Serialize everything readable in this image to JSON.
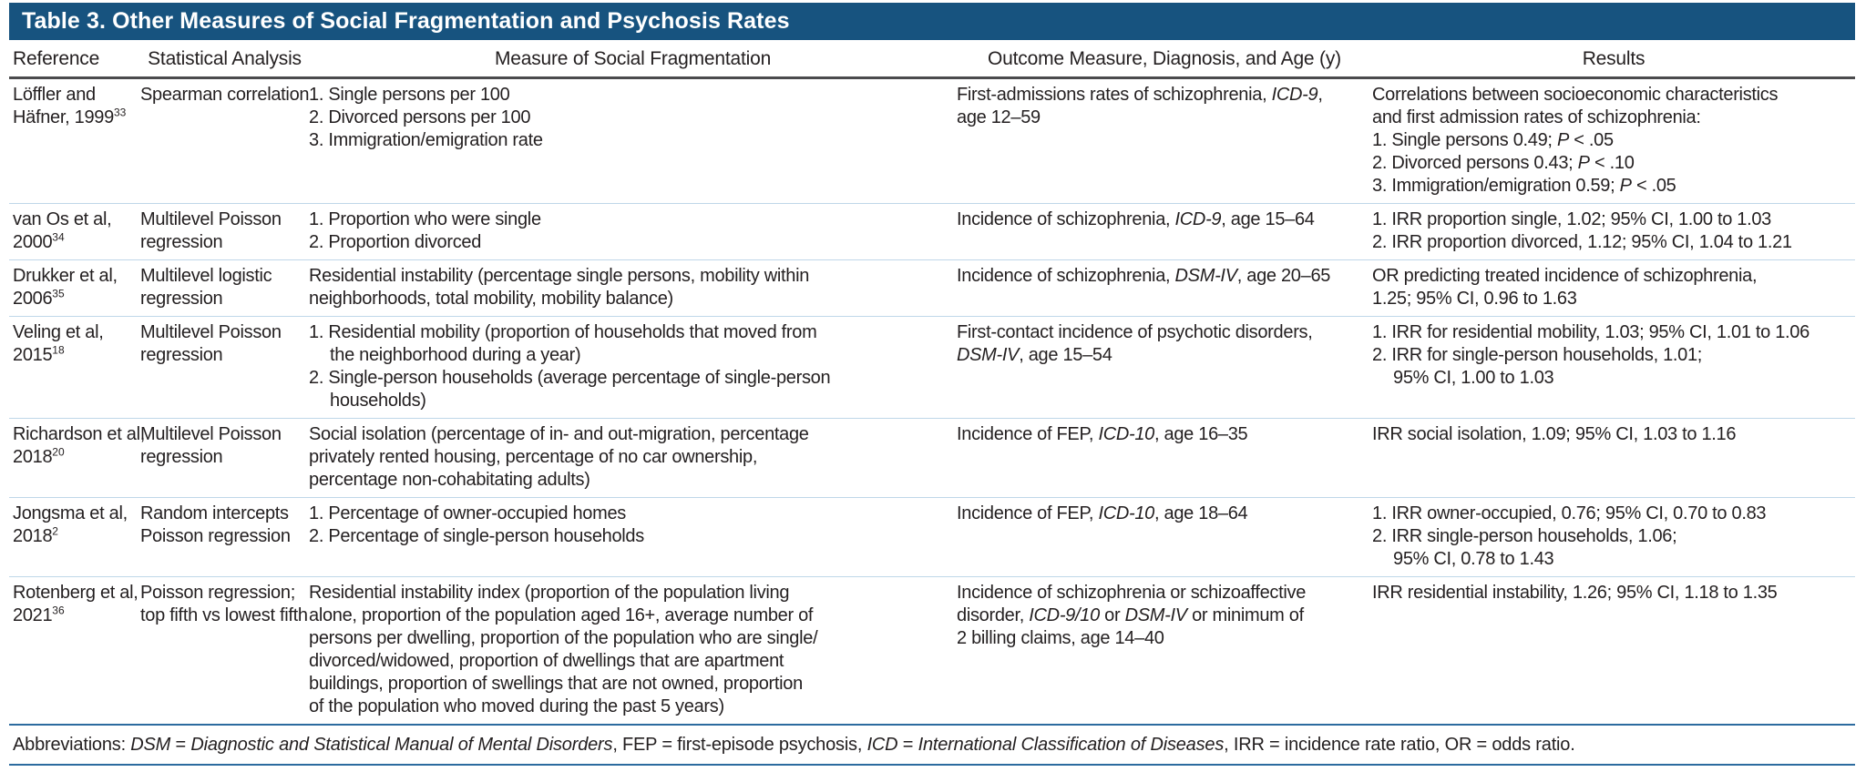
{
  "title": "Table 3. Other Measures of Social Fragmentation and Psychosis Rates",
  "colors": {
    "title_bar_bg": "#17537F",
    "title_text": "#FFFFFF",
    "header_rule": "#4B4B4D",
    "row_rule": "#BFD7E9",
    "accent_rule": "#2C6B9F",
    "body_text": "#231F20"
  },
  "col_keys": [
    "reference",
    "analysis",
    "measure",
    "outcome",
    "results"
  ],
  "columns": [
    {
      "label": "Reference"
    },
    {
      "label": "Statistical Analysis"
    },
    {
      "label": "Measure of Social Fragmentation"
    },
    {
      "label": "Outcome Measure, Diagnosis, and Age (y)"
    },
    {
      "label": "Results"
    }
  ],
  "rows": [
    {
      "reference": [
        {
          "nw": 1,
          "s": [
            {
              "t": "Löffler and"
            }
          ]
        },
        {
          "nw": 1,
          "s": [
            {
              "t": "Häfner, 1999"
            },
            {
              "t": "33",
              "sup": 1
            }
          ]
        }
      ],
      "analysis": [
        {
          "nw": 1,
          "s": [
            {
              "t": "Spearman correlation"
            }
          ]
        }
      ],
      "measure": [
        {
          "h": 1,
          "s": [
            {
              "t": "1. Single persons per 100"
            }
          ]
        },
        {
          "h": 1,
          "s": [
            {
              "t": "2. Divorced persons per 100"
            }
          ]
        },
        {
          "h": 1,
          "s": [
            {
              "t": "3. Immigration/emigration rate"
            }
          ]
        }
      ],
      "outcome": [
        {
          "s": [
            {
              "t": "First-admissions rates of schizophrenia, "
            },
            {
              "t": "ICD-9",
              "i": 1
            },
            {
              "t": ","
            },
            {
              "br": 1
            },
            {
              "t": "age 12–59"
            }
          ]
        }
      ],
      "results": [
        {
          "s": [
            {
              "t": "Correlations between socioeconomic characteristics"
            },
            {
              "br": 1
            },
            {
              "t": "and first admission rates of schizophrenia:"
            }
          ]
        },
        {
          "h": 1,
          "s": [
            {
              "t": "1. Single persons 0.49; "
            },
            {
              "t": "P",
              "i": 1
            },
            {
              "t": " < .05"
            }
          ]
        },
        {
          "h": 1,
          "s": [
            {
              "t": "2. Divorced persons 0.43; "
            },
            {
              "t": "P",
              "i": 1
            },
            {
              "t": " < .10"
            }
          ]
        },
        {
          "h": 1,
          "s": [
            {
              "t": "3. Immigration/emigration 0.59; "
            },
            {
              "t": "P",
              "i": 1
            },
            {
              "t": " < .05"
            }
          ]
        }
      ]
    },
    {
      "reference": [
        {
          "nw": 1,
          "s": [
            {
              "t": "van Os et al,"
            }
          ]
        },
        {
          "nw": 1,
          "s": [
            {
              "t": "2000"
            },
            {
              "t": "34",
              "sup": 1
            }
          ]
        }
      ],
      "analysis": [
        {
          "nw": 1,
          "s": [
            {
              "t": "Multilevel Poisson"
            }
          ]
        },
        {
          "nw": 1,
          "s": [
            {
              "t": "regression"
            }
          ]
        }
      ],
      "measure": [
        {
          "h": 1,
          "s": [
            {
              "t": "1. Proportion who were single"
            }
          ]
        },
        {
          "h": 1,
          "s": [
            {
              "t": "2. Proportion divorced"
            }
          ]
        }
      ],
      "outcome": [
        {
          "s": [
            {
              "t": "Incidence of schizophrenia, "
            },
            {
              "t": "ICD-9",
              "i": 1
            },
            {
              "t": ", age 15–64"
            }
          ]
        }
      ],
      "results": [
        {
          "h": 1,
          "s": [
            {
              "t": "1. IRR proportion single, 1.02; 95% CI, 1.00 to 1.03"
            }
          ]
        },
        {
          "h": 1,
          "s": [
            {
              "t": "2. IRR proportion divorced, 1.12; 95% CI, 1.04 to 1.21"
            }
          ]
        }
      ]
    },
    {
      "reference": [
        {
          "nw": 1,
          "s": [
            {
              "t": "Drukker et al,"
            }
          ]
        },
        {
          "nw": 1,
          "s": [
            {
              "t": "2006"
            },
            {
              "t": "35",
              "sup": 1
            }
          ]
        }
      ],
      "analysis": [
        {
          "nw": 1,
          "s": [
            {
              "t": "Multilevel logistic"
            }
          ]
        },
        {
          "nw": 1,
          "s": [
            {
              "t": "regression"
            }
          ]
        }
      ],
      "measure": [
        {
          "s": [
            {
              "t": "Residential instability (percentage single persons, mobility within"
            },
            {
              "br": 1
            },
            {
              "t": "neighborhoods, total mobility, mobility balance)"
            }
          ]
        }
      ],
      "outcome": [
        {
          "s": [
            {
              "t": "Incidence of schizophrenia, "
            },
            {
              "t": "DSM-IV",
              "i": 1
            },
            {
              "t": ", age 20–65"
            }
          ]
        }
      ],
      "results": [
        {
          "s": [
            {
              "t": "OR predicting treated incidence of schizophrenia,"
            },
            {
              "br": 1
            },
            {
              "t": "1.25; 95% CI, 0.96 to 1.63"
            }
          ]
        }
      ]
    },
    {
      "reference": [
        {
          "nw": 1,
          "s": [
            {
              "t": "Veling et al,"
            }
          ]
        },
        {
          "nw": 1,
          "s": [
            {
              "t": "2015"
            },
            {
              "t": "18",
              "sup": 1
            }
          ]
        }
      ],
      "analysis": [
        {
          "nw": 1,
          "s": [
            {
              "t": "Multilevel Poisson"
            }
          ]
        },
        {
          "nw": 1,
          "s": [
            {
              "t": "regression"
            }
          ]
        }
      ],
      "measure": [
        {
          "h": 1,
          "s": [
            {
              "t": "1. Residential mobility (proportion of households that moved from"
            },
            {
              "br": 1
            },
            {
              "t": "the neighborhood during a year)"
            }
          ]
        },
        {
          "h": 1,
          "s": [
            {
              "t": "2. Single-person households (average percentage of single-person"
            },
            {
              "br": 1
            },
            {
              "t": "households)"
            }
          ]
        }
      ],
      "outcome": [
        {
          "s": [
            {
              "t": "First-contact incidence of psychotic disorders,"
            },
            {
              "br": 1
            },
            {
              "t": "DSM-IV",
              "i": 1
            },
            {
              "t": ", age 15–54"
            }
          ]
        }
      ],
      "results": [
        {
          "h": 1,
          "s": [
            {
              "t": "1. IRR for residential mobility, 1.03; 95% CI, 1.01 to 1.06"
            }
          ]
        },
        {
          "h": 1,
          "s": [
            {
              "t": "2. IRR for single-person households, 1.01;"
            },
            {
              "br": 1
            },
            {
              "t": "95% CI, 1.00 to 1.03"
            }
          ]
        }
      ]
    },
    {
      "reference": [
        {
          "nw": 1,
          "s": [
            {
              "t": "Richardson et al,"
            }
          ]
        },
        {
          "nw": 1,
          "s": [
            {
              "t": "2018"
            },
            {
              "t": "20",
              "sup": 1
            }
          ]
        }
      ],
      "analysis": [
        {
          "nw": 1,
          "s": [
            {
              "t": "Multilevel Poisson"
            }
          ]
        },
        {
          "nw": 1,
          "s": [
            {
              "t": "regression"
            }
          ]
        }
      ],
      "measure": [
        {
          "s": [
            {
              "t": "Social isolation (percentage of in- and out-migration, percentage"
            },
            {
              "br": 1
            },
            {
              "t": "privately rented housing, percentage of no car ownership,"
            },
            {
              "br": 1
            },
            {
              "t": "percentage non-cohabitating adults)"
            }
          ]
        }
      ],
      "outcome": [
        {
          "s": [
            {
              "t": "Incidence of FEP, "
            },
            {
              "t": "ICD-10",
              "i": 1
            },
            {
              "t": ", age 16–35"
            }
          ]
        }
      ],
      "results": [
        {
          "s": [
            {
              "t": "IRR social isolation, 1.09; 95% CI, 1.03 to 1.16"
            }
          ]
        }
      ]
    },
    {
      "reference": [
        {
          "nw": 1,
          "s": [
            {
              "t": "Jongsma et al,"
            }
          ]
        },
        {
          "nw": 1,
          "s": [
            {
              "t": "2018"
            },
            {
              "t": "2",
              "sup": 1
            }
          ]
        }
      ],
      "analysis": [
        {
          "nw": 1,
          "s": [
            {
              "t": "Random intercepts"
            }
          ]
        },
        {
          "nw": 1,
          "s": [
            {
              "t": "Poisson regression"
            }
          ]
        }
      ],
      "measure": [
        {
          "h": 1,
          "s": [
            {
              "t": "1. Percentage of owner-occupied homes"
            }
          ]
        },
        {
          "h": 1,
          "s": [
            {
              "t": "2. Percentage of single-person households"
            }
          ]
        }
      ],
      "outcome": [
        {
          "s": [
            {
              "t": "Incidence of FEP, "
            },
            {
              "t": "ICD-10",
              "i": 1
            },
            {
              "t": ", age 18–64"
            }
          ]
        }
      ],
      "results": [
        {
          "h": 1,
          "s": [
            {
              "t": "1. IRR owner-occupied, 0.76; 95% CI, 0.70 to 0.83"
            }
          ]
        },
        {
          "h": 1,
          "s": [
            {
              "t": "2. IRR single-person households, 1.06;"
            },
            {
              "br": 1
            },
            {
              "t": "95% CI, 0.78 to 1.43"
            }
          ]
        }
      ]
    },
    {
      "reference": [
        {
          "nw": 1,
          "s": [
            {
              "t": "Rotenberg et al,"
            }
          ]
        },
        {
          "nw": 1,
          "s": [
            {
              "t": "2021"
            },
            {
              "t": "36",
              "sup": 1
            }
          ]
        }
      ],
      "analysis": [
        {
          "nw": 1,
          "s": [
            {
              "t": "Poisson regression;"
            }
          ]
        },
        {
          "nw": 1,
          "s": [
            {
              "t": "top fifth vs lowest fifth"
            }
          ]
        }
      ],
      "measure": [
        {
          "s": [
            {
              "t": "Residential instability index (proportion of the population living"
            },
            {
              "br": 1
            },
            {
              "t": "alone, proportion of the population aged 16+, average number of"
            },
            {
              "br": 1
            },
            {
              "t": "persons per dwelling, proportion of the population who are single/"
            },
            {
              "br": 1
            },
            {
              "t": "divorced/widowed, proportion of dwellings that are apartment"
            },
            {
              "br": 1
            },
            {
              "t": "buildings, proportion of swellings that are not owned, proportion"
            },
            {
              "br": 1
            },
            {
              "t": "of the population who moved during the past 5 years)"
            }
          ]
        }
      ],
      "outcome": [
        {
          "s": [
            {
              "t": "Incidence of schizophrenia or schizoaffective"
            },
            {
              "br": 1
            },
            {
              "t": "disorder, "
            },
            {
              "t": "ICD-9/10",
              "i": 1
            },
            {
              "t": " or "
            },
            {
              "t": "DSM-IV",
              "i": 1
            },
            {
              "t": " or minimum of"
            },
            {
              "br": 1
            },
            {
              "t": "2 billing claims, age 14–40"
            }
          ]
        }
      ],
      "results": [
        {
          "s": [
            {
              "t": "IRR residential instability, 1.26; 95% CI, 1.18 to 1.35"
            }
          ]
        }
      ]
    }
  ],
  "footnote": [
    {
      "t": "Abbreviations: "
    },
    {
      "t": "DSM",
      "i": 1
    },
    {
      "t": " = "
    },
    {
      "t": "Diagnostic and Statistical Manual of Mental Disorders",
      "i": 1
    },
    {
      "t": ", FEP = first-episode psychosis, "
    },
    {
      "t": "ICD",
      "i": 1
    },
    {
      "t": " = "
    },
    {
      "t": "International Classification of Diseases",
      "i": 1
    },
    {
      "t": ", IRR = incidence rate ratio, OR = odds ratio."
    }
  ]
}
